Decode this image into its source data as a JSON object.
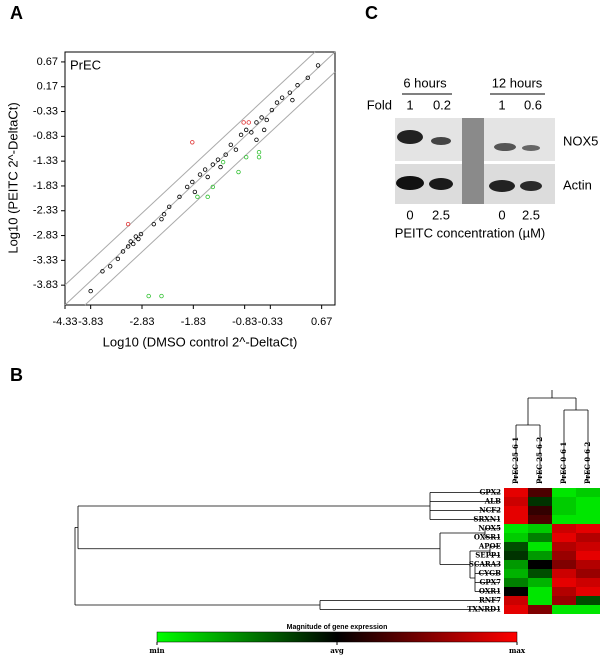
{
  "panel_labels": [
    "A",
    "B",
    "C"
  ],
  "chart_data": [
    {
      "type": "scatter",
      "title": "PrEC",
      "x_label": "Log10 (DMSO control 2^-DeltaCt)",
      "y_label": "Log10 (PEITC 2^-DeltaCt)",
      "xlim": [
        -4.33,
        0.93
      ],
      "ylim": [
        -4.23,
        0.87
      ],
      "xticks": [
        -4.33,
        -3.83,
        -2.83,
        -1.83,
        -0.83,
        -0.33,
        0.67
      ],
      "yticks": [
        0.67,
        0.17,
        -0.33,
        -0.83,
        -1.33,
        -1.83,
        -2.33,
        -2.83,
        -3.33,
        -3.83
      ],
      "series": [
        {
          "color": "#000000",
          "x": [
            -3.83,
            -3.6,
            -3.45,
            -3.3,
            -3.2,
            -3.1,
            -3.05,
            -3.0,
            -2.95,
            -2.9,
            -2.85,
            -2.6,
            -2.45,
            -2.4,
            -2.3,
            -2.1,
            -1.95,
            -1.85,
            -1.8,
            -1.7,
            -1.6,
            -1.55,
            -1.45,
            -1.35,
            -1.3,
            -1.2,
            -1.1,
            -1.0,
            -0.9,
            -0.8,
            -0.7,
            -0.6,
            -0.5,
            -0.4,
            -0.3,
            -0.2,
            -0.1,
            0.05,
            0.2,
            0.4,
            0.6,
            -0.6,
            -0.45,
            0.1
          ],
          "y": [
            -3.95,
            -3.55,
            -3.45,
            -3.3,
            -3.15,
            -3.05,
            -2.95,
            -3.0,
            -2.85,
            -2.9,
            -2.8,
            -2.6,
            -2.5,
            -2.4,
            -2.25,
            -2.05,
            -1.85,
            -1.75,
            -1.95,
            -1.6,
            -1.5,
            -1.65,
            -1.4,
            -1.3,
            -1.45,
            -1.2,
            -1.0,
            -1.1,
            -0.8,
            -0.7,
            -0.75,
            -0.55,
            -0.45,
            -0.5,
            -0.3,
            -0.15,
            -0.05,
            0.05,
            0.2,
            0.35,
            0.6,
            -0.9,
            -0.7,
            -0.1
          ]
        },
        {
          "color": "#e03030",
          "x": [
            -3.1,
            -1.85,
            -0.85,
            -0.75
          ],
          "y": [
            -2.6,
            -0.95,
            -0.55,
            -0.55
          ]
        },
        {
          "color": "#30c030",
          "x": [
            -2.7,
            -2.45,
            -1.75,
            -1.45,
            -1.25,
            -0.95,
            -0.8,
            -0.55,
            -0.55,
            -1.55
          ],
          "y": [
            -4.05,
            -4.05,
            -2.05,
            -1.85,
            -1.35,
            -1.55,
            -1.25,
            -1.15,
            -1.25,
            -2.05
          ]
        }
      ]
    },
    {
      "type": "heatmap",
      "title": "Magnitude of gene expression",
      "columns": [
        "PrEC 25-6 1",
        "PrEC 25-6 2",
        "PrEC 0-6 1",
        "PrEC 0-6 2"
      ],
      "rows": [
        "GPX2",
        "ALB",
        "NCF2",
        "SRXN1",
        "NOX5",
        "OXSR1",
        "APOE",
        "SEPP1",
        "SCARA3",
        "CYGB",
        "GPX7",
        "OXR1",
        "RNF7",
        "TXNRD1"
      ],
      "values": [
        [
          0.9,
          0.3,
          -0.9,
          -0.8
        ],
        [
          0.8,
          -0.2,
          -0.8,
          -0.9
        ],
        [
          0.9,
          0.2,
          -0.8,
          -0.9
        ],
        [
          0.9,
          0.3,
          -0.9,
          -0.9
        ],
        [
          -0.9,
          -0.8,
          0.8,
          0.9
        ],
        [
          -0.8,
          -0.5,
          0.9,
          0.7
        ],
        [
          -0.3,
          -0.9,
          0.7,
          0.8
        ],
        [
          -0.2,
          -0.6,
          0.6,
          0.9
        ],
        [
          -0.6,
          0.0,
          0.5,
          0.7
        ],
        [
          -0.7,
          -0.3,
          0.8,
          0.6
        ],
        [
          -0.5,
          -0.7,
          0.9,
          0.8
        ],
        [
          0.0,
          -0.9,
          0.7,
          0.9
        ],
        [
          0.8,
          -0.9,
          0.6,
          -0.3
        ],
        [
          0.9,
          0.5,
          -0.9,
          -0.9
        ]
      ],
      "colors": [
        "#00ff00",
        "#000000",
        "#ff0000"
      ],
      "colorbar_ticks": [
        {
          "value": -1,
          "label": "min"
        },
        {
          "value": 0,
          "label": "avg"
        },
        {
          "value": 1,
          "label": "max"
        }
      ]
    }
  ],
  "blot": {
    "timepoints": [
      "6 hours",
      "12 hours"
    ],
    "fold_label": "Fold",
    "folds": [
      "1",
      "0.2",
      "1",
      "0.6"
    ],
    "bands": [
      "NOX5",
      "Actin"
    ],
    "doses": [
      "0",
      "2.5",
      "0",
      "2.5"
    ],
    "x_label": "PEITC concentration (µM)"
  }
}
